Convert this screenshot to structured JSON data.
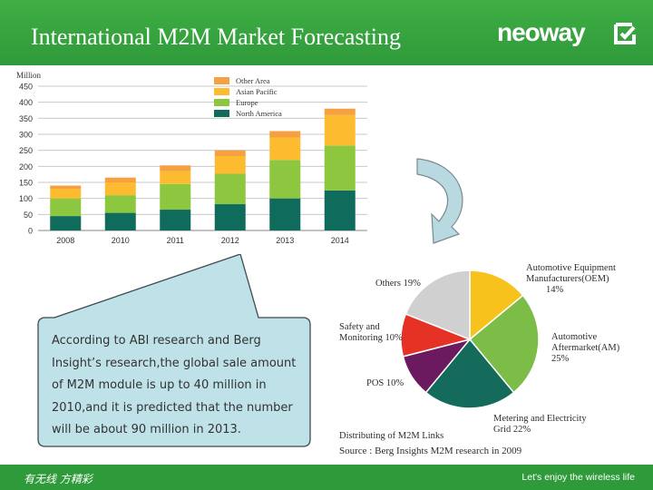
{
  "header": {
    "title": "International M2M Market Forecasting",
    "logo_text": "neoway"
  },
  "callout": {
    "text": "According to ABI research and Berg Insight’s research,the global sale amount of M2M module is up to 40 million in 2010,and it is predicted that the number will be about 90 million in 2013."
  },
  "footer": {
    "left_text": "有无线 方精彩",
    "right_text": "Let's enjoy the wireless life"
  },
  "colors": {
    "brand_green": "#2f9a3a",
    "north_america": "#0f6b5c",
    "europe": "#8dc63f",
    "asian_pacific": "#fdbb2f",
    "other_area": "#f5a142"
  },
  "chart_data": [
    {
      "type": "bar",
      "stacked": true,
      "ylabel": "Million",
      "ylim": [
        0,
        450
      ],
      "yticks": [
        0,
        50,
        100,
        150,
        200,
        250,
        300,
        350,
        400,
        450
      ],
      "grid": true,
      "legend_position": "top-right",
      "categories": [
        "2008",
        "2010",
        "2011",
        "2012",
        "2013",
        "2014"
      ],
      "series": [
        {
          "name": "North America",
          "color": "#0f6b5c",
          "values": [
            45,
            55,
            65,
            82,
            100,
            125
          ]
        },
        {
          "name": "Europe",
          "color": "#8dc63f",
          "values": [
            55,
            55,
            80,
            95,
            120,
            140
          ]
        },
        {
          "name": "Asian Pacific",
          "color": "#fdbb2f",
          "values": [
            30,
            40,
            40,
            55,
            70,
            95
          ]
        },
        {
          "name": "Other Area",
          "color": "#f5a142",
          "values": [
            10,
            15,
            18,
            18,
            20,
            20
          ]
        }
      ],
      "legend_order": [
        "Other Area",
        "Asian Pacific",
        "Europe",
        "North America"
      ]
    },
    {
      "type": "pie",
      "title": "Distributing of M2M Links",
      "source": "Source : Berg Insights M2M research in 2009",
      "slices": [
        {
          "name": "Automotive Equipment Manufacturers(OEM)",
          "percent": 14,
          "label_lines": [
            "Automotive Equipment",
            "Manufacturers(OEM)",
            "14%"
          ],
          "color": "#f7c21b"
        },
        {
          "name": "Automotive Aftermarket(AM)",
          "percent": 25,
          "label_lines": [
            "Automotive",
            "Aftermarket(AM)",
            "25%"
          ],
          "color": "#7cbd47"
        },
        {
          "name": "Metering and Electricity Grid",
          "percent": 22,
          "label_lines": [
            "Metering and Electricity",
            "Grid  22%"
          ],
          "color": "#146b5b"
        },
        {
          "name": "POS",
          "percent": 10,
          "label_lines": [
            "POS 10%"
          ],
          "color": "#6c1a60"
        },
        {
          "name": "Safety and Monitoring",
          "percent": 10,
          "label_lines": [
            "Safety and",
            "Monitoring 10%"
          ],
          "color": "#e53224"
        },
        {
          "name": "Others",
          "percent": 19,
          "label_lines": [
            "Others 19%"
          ],
          "color": "#d0d0d0"
        }
      ]
    }
  ]
}
